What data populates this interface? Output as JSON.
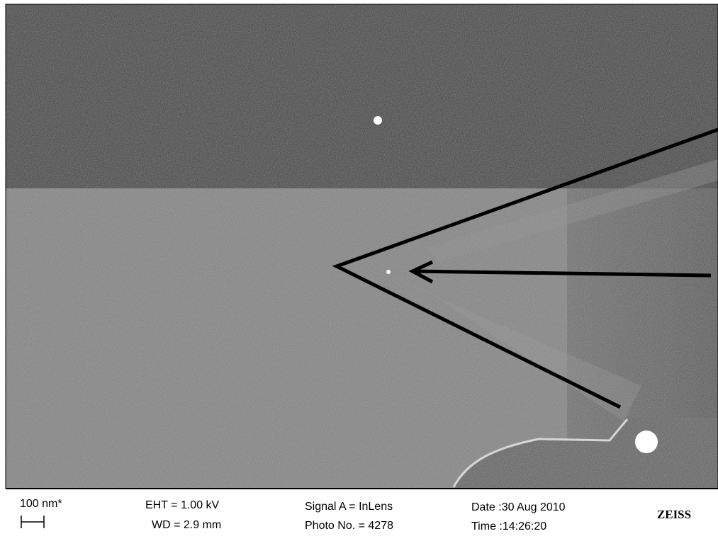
{
  "info_bar": {
    "scale_bar": "100 nm*",
    "eht": "EHT = 1.00 kV",
    "wd": "WD = 2.9 mm",
    "signal": "Signal A = InLens",
    "photo_no": "Photo No. = 4278",
    "date": "Date :30 Aug 2010",
    "time": "Time :14:26:20",
    "logo": "ZEISS"
  }
}
